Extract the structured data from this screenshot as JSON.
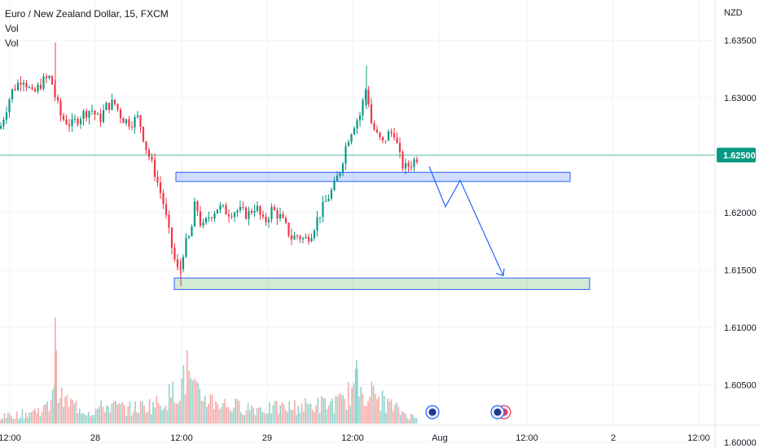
{
  "legend": {
    "title": "Euro / New Zealand Dollar, 15, FXCM",
    "line2": "Vol",
    "line3": "Vol"
  },
  "axis": {
    "currency": "NZD",
    "price_ticks": [
      "1.63500",
      "1.63000",
      "1.62500",
      "1.62000",
      "1.61500",
      "1.61000",
      "1.60500",
      "1.60000"
    ],
    "price_tick_values": [
      1.635,
      1.63,
      1.625,
      1.62,
      1.615,
      1.61,
      1.605,
      1.6
    ],
    "time_ticks": [
      "12:00",
      "28",
      "12:00",
      "29",
      "12:00",
      "Aug",
      "12:00",
      "2",
      "12:00"
    ]
  },
  "last_price": {
    "label": "1.62500",
    "value": 1.625,
    "color": "#089981"
  },
  "colors": {
    "up": "#089981",
    "down": "#f23645",
    "zone_blue": "#2962ff",
    "zone_green": "#4caf50"
  },
  "chart_data": {
    "type": "candlestick",
    "symbol": "Euro / New Zealand Dollar",
    "timeframe": "15",
    "source": "FXCM",
    "ylim": [
      1.5995,
      1.6385
    ],
    "price_ticks": [
      1.635,
      1.63,
      1.625,
      1.62,
      1.615,
      1.61,
      1.605,
      1.6
    ],
    "x_ticks": [
      "12:00",
      "28",
      "12:00",
      "29",
      "12:00",
      "Aug",
      "12:00",
      "2",
      "12:00"
    ],
    "path": [
      [
        0,
        1.6273
      ],
      [
        14,
        1.6305
      ],
      [
        28,
        1.6318
      ],
      [
        40,
        1.6302
      ],
      [
        52,
        1.6314
      ],
      [
        62,
        1.6318
      ],
      [
        68,
        1.63
      ],
      [
        75,
        1.6283
      ],
      [
        88,
        1.6276
      ],
      [
        100,
        1.6285
      ],
      [
        112,
        1.629
      ],
      [
        122,
        1.628
      ],
      [
        130,
        1.6292
      ],
      [
        140,
        1.6296
      ],
      [
        150,
        1.6282
      ],
      [
        160,
        1.6278
      ],
      [
        170,
        1.6283
      ],
      [
        180,
        1.6255
      ],
      [
        190,
        1.6235
      ],
      [
        200,
        1.621
      ],
      [
        208,
        1.618
      ],
      [
        214,
        1.616
      ],
      [
        220,
        1.6145
      ],
      [
        226,
        1.617
      ],
      [
        234,
        1.618
      ],
      [
        240,
        1.621
      ],
      [
        248,
        1.6185
      ],
      [
        256,
        1.6196
      ],
      [
        268,
        1.6205
      ],
      [
        280,
        1.62
      ],
      [
        292,
        1.6202
      ],
      [
        304,
        1.6198
      ],
      [
        314,
        1.6206
      ],
      [
        324,
        1.619
      ],
      [
        334,
        1.6203
      ],
      [
        344,
        1.6196
      ],
      [
        352,
        1.6186
      ],
      [
        358,
        1.6178
      ],
      [
        366,
        1.618
      ],
      [
        374,
        1.6176
      ],
      [
        382,
        1.6182
      ],
      [
        392,
        1.6198
      ],
      [
        402,
        1.6212
      ],
      [
        410,
        1.6222
      ],
      [
        418,
        1.6238
      ],
      [
        426,
        1.6262
      ],
      [
        434,
        1.6276
      ],
      [
        442,
        1.6285
      ],
      [
        450,
        1.631
      ],
      [
        456,
        1.6278
      ],
      [
        462,
        1.6268
      ],
      [
        470,
        1.626
      ],
      [
        476,
        1.6268
      ],
      [
        484,
        1.627
      ],
      [
        490,
        1.625
      ],
      [
        496,
        1.6238
      ],
      [
        504,
        1.6242
      ],
      [
        512,
        1.6248
      ]
    ],
    "volume_profile": [
      [
        0,
        8
      ],
      [
        30,
        12
      ],
      [
        60,
        20
      ],
      [
        68,
        70
      ],
      [
        75,
        30
      ],
      [
        110,
        14
      ],
      [
        130,
        22
      ],
      [
        160,
        18
      ],
      [
        200,
        26
      ],
      [
        230,
        55
      ],
      [
        240,
        36
      ],
      [
        280,
        22
      ],
      [
        330,
        18
      ],
      [
        380,
        22
      ],
      [
        420,
        26
      ],
      [
        438,
        48
      ],
      [
        460,
        34
      ],
      [
        490,
        16
      ],
      [
        512,
        6
      ]
    ],
    "annotations": {
      "resistance_zone": [
        1.6227,
        1.6235
      ],
      "support_zone": [
        1.6133,
        1.6143
      ],
      "projection": [
        [
          1.624
        ],
        [
          1.6205
        ],
        [
          1.6228
        ],
        [
          1.6145
        ]
      ]
    }
  }
}
